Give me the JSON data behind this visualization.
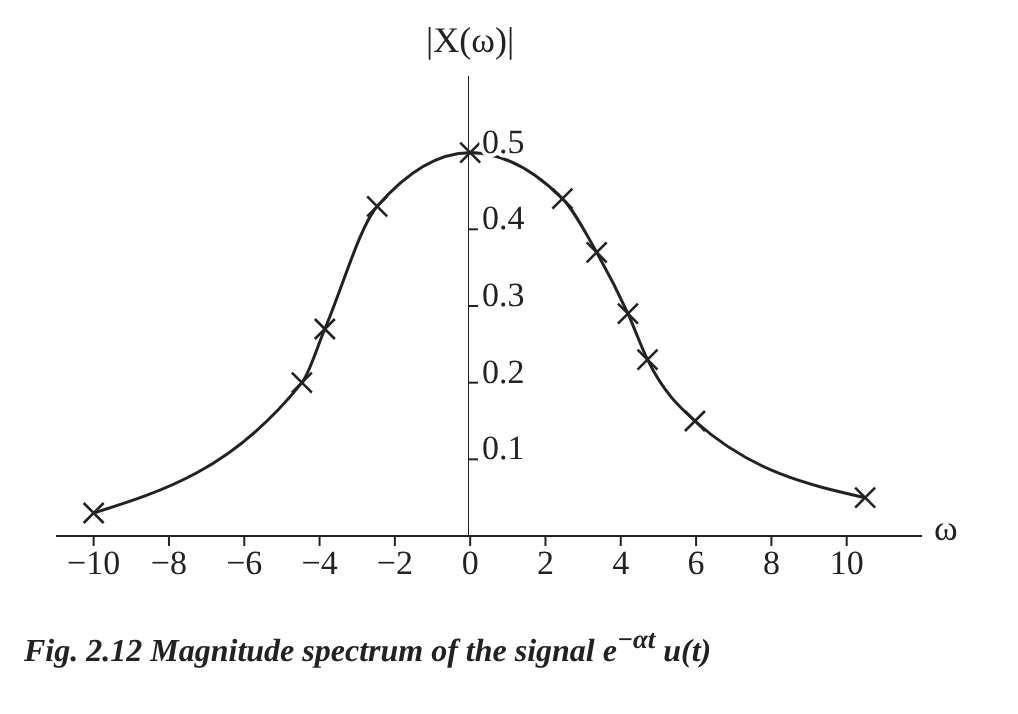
{
  "chart_data": {
    "type": "line",
    "title": "Fig. 2.12 Magnitude spectrum of the signal e$^{−αt}$ u(t)",
    "xlabel": "ω",
    "ylabel": "|X(ω)|",
    "x": [
      -10,
      -4.47,
      -3.86,
      -2.47,
      0,
      2.45,
      3.36,
      4.19,
      4.71,
      5.97,
      10.49
    ],
    "series": [
      {
        "color": "#222222",
        "values": [
          0.03,
          0.2,
          0.27,
          0.43,
          0.5,
          0.44,
          0.37,
          0.29,
          0.23,
          0.15,
          0.05
        ]
      }
    ],
    "xlim": [
      -11,
      12
    ],
    "xticks": [
      -10,
      -8,
      -6,
      -4,
      -2,
      0,
      2,
      4,
      6,
      8,
      10
    ],
    "ylim": [
      0,
      0.6
    ],
    "yticks": [
      0.1,
      0.2,
      0.3,
      0.4,
      0.5
    ],
    "marker": "cross",
    "line_style": "solid",
    "grid": false,
    "legend": false
  }
}
